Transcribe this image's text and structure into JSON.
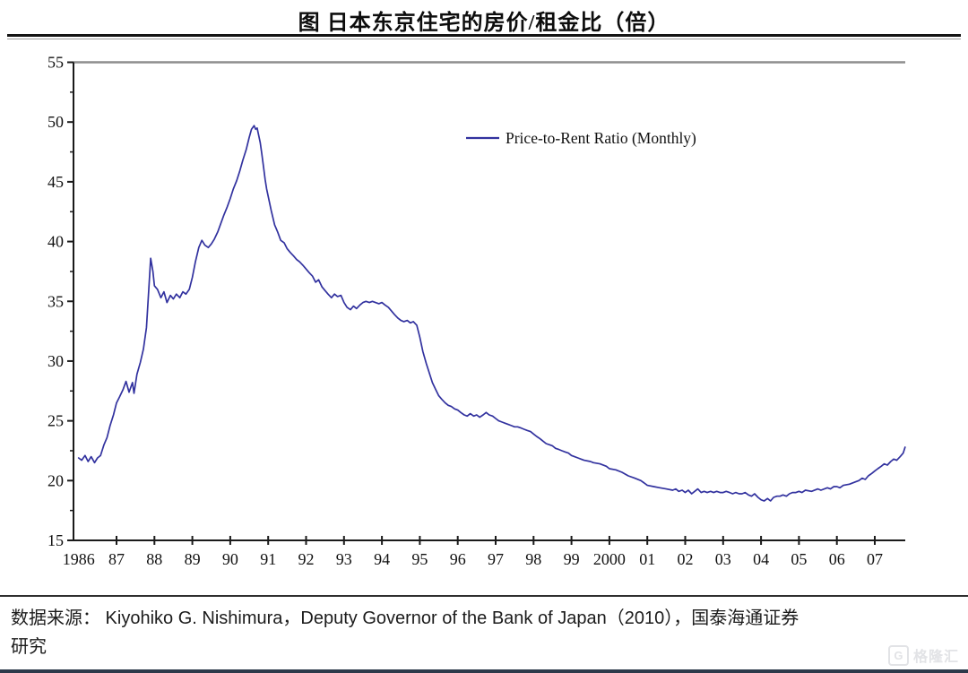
{
  "header": {
    "title": "图  日本东京住宅的房价/租金比（倍）"
  },
  "source": {
    "text": "数据来源： Kiyohiko G. Nishimura，Deputy Governor of the Bank of Japan（2010），国泰海通证券\n研究"
  },
  "watermark": {
    "logo": "G",
    "text": "格隆汇"
  },
  "chart_data": {
    "type": "line",
    "title": "图  日本东京住宅的房价/租金比（倍）",
    "xlabel": "",
    "ylabel": "",
    "grid": false,
    "legend_position": "inside-top-center-right",
    "line_color": "#32329f",
    "axis_color": "#1a1a1a",
    "plot_top_border_color": "#8e8e8e",
    "ylim": [
      15,
      55
    ],
    "y_ticks": [
      15,
      20,
      25,
      30,
      35,
      40,
      45,
      50,
      55
    ],
    "x_ticks": [
      {
        "label": "1986",
        "year": 1986
      },
      {
        "label": "87",
        "year": 1987
      },
      {
        "label": "88",
        "year": 1988
      },
      {
        "label": "89",
        "year": 1989
      },
      {
        "label": "90",
        "year": 1990
      },
      {
        "label": "91",
        "year": 1991
      },
      {
        "label": "92",
        "year": 1992
      },
      {
        "label": "93",
        "year": 1993
      },
      {
        "label": "94",
        "year": 1994
      },
      {
        "label": "95",
        "year": 1995
      },
      {
        "label": "96",
        "year": 1996
      },
      {
        "label": "97",
        "year": 1997
      },
      {
        "label": "98",
        "year": 1998
      },
      {
        "label": "99",
        "year": 1999
      },
      {
        "label": "2000",
        "year": 2000
      },
      {
        "label": "01",
        "year": 2001
      },
      {
        "label": "02",
        "year": 2002
      },
      {
        "label": "03",
        "year": 2003
      },
      {
        "label": "04",
        "year": 2004
      },
      {
        "label": "05",
        "year": 2005
      },
      {
        "label": "06",
        "year": 2006
      },
      {
        "label": "07",
        "year": 2007
      }
    ],
    "series": [
      {
        "name": "Price-to-Rent Ratio (Monthly)",
        "points": [
          [
            1986.0,
            21.9
          ],
          [
            1986.08,
            21.7
          ],
          [
            1986.17,
            22.1
          ],
          [
            1986.25,
            21.6
          ],
          [
            1986.33,
            22.0
          ],
          [
            1986.42,
            21.5
          ],
          [
            1986.5,
            21.9
          ],
          [
            1986.58,
            22.1
          ],
          [
            1986.67,
            23.0
          ],
          [
            1986.75,
            23.6
          ],
          [
            1986.83,
            24.6
          ],
          [
            1986.92,
            25.5
          ],
          [
            1987.0,
            26.5
          ],
          [
            1987.08,
            27.0
          ],
          [
            1987.17,
            27.6
          ],
          [
            1987.25,
            28.3
          ],
          [
            1987.33,
            27.4
          ],
          [
            1987.42,
            28.2
          ],
          [
            1987.46,
            27.3
          ],
          [
            1987.54,
            28.9
          ],
          [
            1987.63,
            29.9
          ],
          [
            1987.71,
            31.0
          ],
          [
            1987.79,
            32.8
          ],
          [
            1987.85,
            36.0
          ],
          [
            1987.9,
            38.6
          ],
          [
            1987.96,
            37.5
          ],
          [
            1988.0,
            36.3
          ],
          [
            1988.08,
            36.0
          ],
          [
            1988.17,
            35.3
          ],
          [
            1988.25,
            35.8
          ],
          [
            1988.33,
            34.9
          ],
          [
            1988.42,
            35.5
          ],
          [
            1988.5,
            35.2
          ],
          [
            1988.58,
            35.6
          ],
          [
            1988.67,
            35.3
          ],
          [
            1988.75,
            35.8
          ],
          [
            1988.83,
            35.6
          ],
          [
            1988.92,
            36.0
          ],
          [
            1989.0,
            37.0
          ],
          [
            1989.08,
            38.3
          ],
          [
            1989.17,
            39.5
          ],
          [
            1989.25,
            40.1
          ],
          [
            1989.33,
            39.7
          ],
          [
            1989.42,
            39.5
          ],
          [
            1989.5,
            39.8
          ],
          [
            1989.58,
            40.2
          ],
          [
            1989.67,
            40.8
          ],
          [
            1989.75,
            41.5
          ],
          [
            1989.83,
            42.2
          ],
          [
            1989.92,
            42.9
          ],
          [
            1990.0,
            43.6
          ],
          [
            1990.08,
            44.4
          ],
          [
            1990.17,
            45.1
          ],
          [
            1990.25,
            45.9
          ],
          [
            1990.33,
            46.8
          ],
          [
            1990.42,
            47.7
          ],
          [
            1990.5,
            48.7
          ],
          [
            1990.56,
            49.4
          ],
          [
            1990.63,
            49.7
          ],
          [
            1990.67,
            49.4
          ],
          [
            1990.71,
            49.5
          ],
          [
            1990.75,
            48.9
          ],
          [
            1990.79,
            48.3
          ],
          [
            1990.83,
            47.4
          ],
          [
            1990.88,
            46.2
          ],
          [
            1990.92,
            45.2
          ],
          [
            1990.96,
            44.4
          ],
          [
            1991.0,
            43.8
          ],
          [
            1991.08,
            42.6
          ],
          [
            1991.17,
            41.4
          ],
          [
            1991.25,
            40.8
          ],
          [
            1991.33,
            40.1
          ],
          [
            1991.42,
            39.9
          ],
          [
            1991.5,
            39.4
          ],
          [
            1991.58,
            39.1
          ],
          [
            1991.67,
            38.8
          ],
          [
            1991.75,
            38.5
          ],
          [
            1991.83,
            38.3
          ],
          [
            1991.92,
            38.0
          ],
          [
            1992.0,
            37.7
          ],
          [
            1992.08,
            37.4
          ],
          [
            1992.17,
            37.1
          ],
          [
            1992.25,
            36.6
          ],
          [
            1992.33,
            36.8
          ],
          [
            1992.42,
            36.2
          ],
          [
            1992.5,
            35.9
          ],
          [
            1992.58,
            35.6
          ],
          [
            1992.67,
            35.3
          ],
          [
            1992.75,
            35.6
          ],
          [
            1992.83,
            35.4
          ],
          [
            1992.92,
            35.5
          ],
          [
            1993.0,
            34.9
          ],
          [
            1993.08,
            34.5
          ],
          [
            1993.17,
            34.3
          ],
          [
            1993.25,
            34.6
          ],
          [
            1993.33,
            34.4
          ],
          [
            1993.42,
            34.7
          ],
          [
            1993.5,
            34.9
          ],
          [
            1993.58,
            35.0
          ],
          [
            1993.67,
            34.9
          ],
          [
            1993.75,
            35.0
          ],
          [
            1993.83,
            34.9
          ],
          [
            1993.92,
            34.8
          ],
          [
            1994.0,
            34.9
          ],
          [
            1994.08,
            34.7
          ],
          [
            1994.17,
            34.5
          ],
          [
            1994.25,
            34.2
          ],
          [
            1994.33,
            33.9
          ],
          [
            1994.42,
            33.6
          ],
          [
            1994.5,
            33.4
          ],
          [
            1994.58,
            33.3
          ],
          [
            1994.67,
            33.4
          ],
          [
            1994.75,
            33.2
          ],
          [
            1994.83,
            33.3
          ],
          [
            1994.92,
            33.0
          ],
          [
            1995.0,
            32.0
          ],
          [
            1995.08,
            30.8
          ],
          [
            1995.17,
            29.8
          ],
          [
            1995.25,
            29.0
          ],
          [
            1995.33,
            28.2
          ],
          [
            1995.42,
            27.6
          ],
          [
            1995.5,
            27.1
          ],
          [
            1995.58,
            26.8
          ],
          [
            1995.67,
            26.5
          ],
          [
            1995.75,
            26.3
          ],
          [
            1995.83,
            26.2
          ],
          [
            1995.92,
            26.0
          ],
          [
            1996.0,
            25.9
          ],
          [
            1996.08,
            25.7
          ],
          [
            1996.17,
            25.5
          ],
          [
            1996.25,
            25.4
          ],
          [
            1996.33,
            25.6
          ],
          [
            1996.42,
            25.4
          ],
          [
            1996.5,
            25.5
          ],
          [
            1996.58,
            25.3
          ],
          [
            1996.67,
            25.5
          ],
          [
            1996.75,
            25.7
          ],
          [
            1996.83,
            25.5
          ],
          [
            1996.92,
            25.4
          ],
          [
            1997.0,
            25.2
          ],
          [
            1997.08,
            25.0
          ],
          [
            1997.17,
            24.9
          ],
          [
            1997.25,
            24.8
          ],
          [
            1997.33,
            24.7
          ],
          [
            1997.42,
            24.6
          ],
          [
            1997.5,
            24.5
          ],
          [
            1997.58,
            24.5
          ],
          [
            1997.67,
            24.4
          ],
          [
            1997.75,
            24.3
          ],
          [
            1997.83,
            24.2
          ],
          [
            1997.92,
            24.1
          ],
          [
            1998.0,
            23.9
          ],
          [
            1998.08,
            23.7
          ],
          [
            1998.17,
            23.5
          ],
          [
            1998.25,
            23.3
          ],
          [
            1998.33,
            23.1
          ],
          [
            1998.42,
            23.0
          ],
          [
            1998.5,
            22.9
          ],
          [
            1998.58,
            22.7
          ],
          [
            1998.67,
            22.6
          ],
          [
            1998.75,
            22.5
          ],
          [
            1998.83,
            22.4
          ],
          [
            1998.92,
            22.3
          ],
          [
            1999.0,
            22.1
          ],
          [
            1999.08,
            22.0
          ],
          [
            1999.17,
            21.9
          ],
          [
            1999.25,
            21.8
          ],
          [
            1999.33,
            21.7
          ],
          [
            1999.5,
            21.6
          ],
          [
            1999.58,
            21.5
          ],
          [
            1999.75,
            21.4
          ],
          [
            1999.92,
            21.2
          ],
          [
            2000.0,
            21.0
          ],
          [
            2000.17,
            20.9
          ],
          [
            2000.33,
            20.7
          ],
          [
            2000.5,
            20.4
          ],
          [
            2000.67,
            20.2
          ],
          [
            2000.83,
            20.0
          ],
          [
            2000.92,
            19.8
          ],
          [
            2001.0,
            19.6
          ],
          [
            2001.17,
            19.5
          ],
          [
            2001.33,
            19.4
          ],
          [
            2001.5,
            19.3
          ],
          [
            2001.67,
            19.2
          ],
          [
            2001.75,
            19.3
          ],
          [
            2001.83,
            19.1
          ],
          [
            2001.92,
            19.2
          ],
          [
            2002.0,
            19.0
          ],
          [
            2002.08,
            19.2
          ],
          [
            2002.17,
            18.9
          ],
          [
            2002.25,
            19.1
          ],
          [
            2002.33,
            19.3
          ],
          [
            2002.42,
            19.0
          ],
          [
            2002.5,
            19.1
          ],
          [
            2002.58,
            19.0
          ],
          [
            2002.67,
            19.1
          ],
          [
            2002.75,
            19.0
          ],
          [
            2002.83,
            19.1
          ],
          [
            2002.92,
            19.0
          ],
          [
            2003.0,
            19.0
          ],
          [
            2003.08,
            19.1
          ],
          [
            2003.17,
            19.0
          ],
          [
            2003.25,
            18.9
          ],
          [
            2003.33,
            19.0
          ],
          [
            2003.42,
            18.9
          ],
          [
            2003.5,
            18.9
          ],
          [
            2003.58,
            19.0
          ],
          [
            2003.67,
            18.8
          ],
          [
            2003.75,
            18.7
          ],
          [
            2003.83,
            18.9
          ],
          [
            2003.92,
            18.6
          ],
          [
            2004.0,
            18.4
          ],
          [
            2004.08,
            18.3
          ],
          [
            2004.17,
            18.5
          ],
          [
            2004.25,
            18.3
          ],
          [
            2004.33,
            18.6
          ],
          [
            2004.42,
            18.7
          ],
          [
            2004.5,
            18.7
          ],
          [
            2004.58,
            18.8
          ],
          [
            2004.67,
            18.7
          ],
          [
            2004.75,
            18.9
          ],
          [
            2004.83,
            19.0
          ],
          [
            2004.92,
            19.0
          ],
          [
            2005.0,
            19.1
          ],
          [
            2005.08,
            19.0
          ],
          [
            2005.17,
            19.2
          ],
          [
            2005.33,
            19.1
          ],
          [
            2005.5,
            19.3
          ],
          [
            2005.58,
            19.2
          ],
          [
            2005.75,
            19.4
          ],
          [
            2005.83,
            19.3
          ],
          [
            2005.92,
            19.5
          ],
          [
            2006.0,
            19.5
          ],
          [
            2006.08,
            19.4
          ],
          [
            2006.17,
            19.6
          ],
          [
            2006.33,
            19.7
          ],
          [
            2006.5,
            19.9
          ],
          [
            2006.58,
            20.0
          ],
          [
            2006.67,
            20.2
          ],
          [
            2006.75,
            20.1
          ],
          [
            2006.83,
            20.4
          ],
          [
            2006.92,
            20.6
          ],
          [
            2007.0,
            20.8
          ],
          [
            2007.08,
            21.0
          ],
          [
            2007.17,
            21.2
          ],
          [
            2007.25,
            21.4
          ],
          [
            2007.33,
            21.3
          ],
          [
            2007.42,
            21.6
          ],
          [
            2007.5,
            21.8
          ],
          [
            2007.58,
            21.7
          ],
          [
            2007.67,
            22.0
          ],
          [
            2007.75,
            22.3
          ],
          [
            2007.8,
            22.8
          ]
        ]
      }
    ]
  }
}
